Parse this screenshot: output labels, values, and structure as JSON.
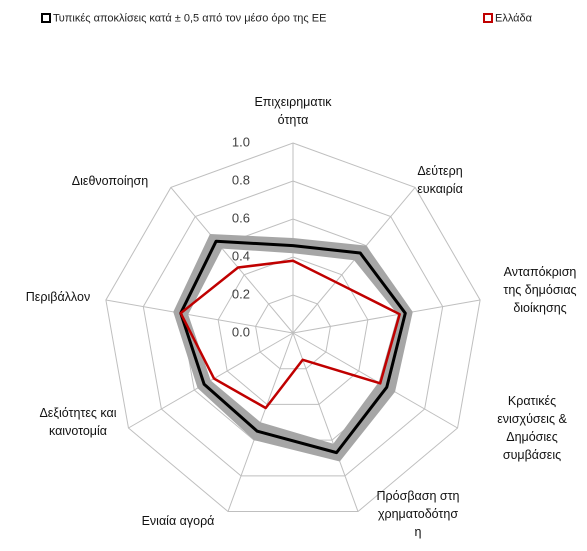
{
  "chart_data": {
    "type": "radar",
    "categories": [
      [
        "Επιχειρηματικ",
        "ότητα"
      ],
      [
        "Δεύτερη",
        "ευκαιρία"
      ],
      [
        "Ανταπόκριση",
        "της δημόσιας",
        "διοίκησης"
      ],
      [
        "Κρατικές",
        "ενισχύσεις &",
        "Δημόσιες",
        "συμβάσεις"
      ],
      [
        "Πρόσβαση στη",
        "χρηματοδότησ",
        "η"
      ],
      [
        "Ενιαία αγορά"
      ],
      [
        "Δεξιότητες και",
        "καινοτομία"
      ],
      [
        "Περιβάλλον"
      ],
      [
        "Διεθνοποίηση"
      ]
    ],
    "series": [
      {
        "name": "Τυπικές αποκλίσεις  κατά  ± 0,5 από  τον μέσο όρο της ΕΕ",
        "color": "#000000",
        "band_color": "#a6a6a6",
        "values": [
          0.46,
          0.55,
          0.6,
          0.57,
          0.67,
          0.55,
          0.54,
          0.6,
          0.63
        ],
        "lower": [
          0.42,
          0.5,
          0.56,
          0.52,
          0.62,
          0.5,
          0.5,
          0.56,
          0.58
        ],
        "upper": [
          0.5,
          0.6,
          0.64,
          0.62,
          0.72,
          0.6,
          0.58,
          0.64,
          0.68
        ]
      },
      {
        "name": "Ελλάδα",
        "color": "#c00000",
        "values": [
          0.38,
          0.35,
          0.57,
          0.53,
          0.15,
          0.42,
          0.48,
          0.6,
          0.45
        ]
      }
    ],
    "ylim": [
      0,
      1
    ],
    "yticks": [
      {
        "value": 0,
        "label": "0.0"
      },
      {
        "value": 0.2,
        "label": "0.2"
      },
      {
        "value": 0.4,
        "label": "0.4"
      },
      {
        "value": 0.6,
        "label": "0.6"
      },
      {
        "value": 0.8,
        "label": "0.8"
      },
      {
        "value": 1,
        "label": "1.0"
      }
    ],
    "grid": true
  }
}
